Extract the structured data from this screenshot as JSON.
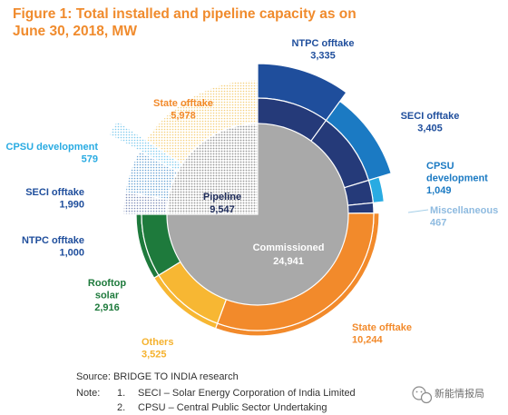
{
  "chart_data": {
    "type": "pie",
    "title_line1": "Figure 1: Total installed and pipeline capacity as on",
    "title_line2": "June 30, 2018, MW",
    "unit": "MW",
    "inner_ring": {
      "commissioned": {
        "label": "Commissioned",
        "value": "24,941",
        "amount": 24941
      },
      "pipeline": {
        "label": "Pipeline",
        "value": "9,547",
        "amount": 9547
      }
    },
    "commissioned_breakdown": [
      {
        "label": [
          "NTPC offtake"
        ],
        "value": "3,335",
        "amount": 3335,
        "color": "#1f4e9c"
      },
      {
        "label": [
          "SECI offtake"
        ],
        "value": "3,405",
        "amount": 3405,
        "color": "#1b7ac3"
      },
      {
        "label": [
          "CPSU",
          "development"
        ],
        "value": "1,049",
        "amount": 1049,
        "color": "#29abe2"
      },
      {
        "label": [
          "Miscellaneous"
        ],
        "value": "467",
        "amount": 467,
        "color": "#a5cfe8"
      },
      {
        "label": [
          "State offtake"
        ],
        "value": "10,244",
        "amount": 10244,
        "color": "#f28a2b"
      },
      {
        "label": [
          "Others"
        ],
        "value": "3,525",
        "amount": 3525,
        "color": "#f7b733"
      },
      {
        "label": [
          "Rooftop",
          "solar"
        ],
        "value": "2,916",
        "amount": 2916,
        "color": "#1e7a3c"
      }
    ],
    "pipeline_breakdown": [
      {
        "label": [
          "NTPC offtake"
        ],
        "value": "1,000",
        "amount": 1000,
        "color": "#1f4e9c"
      },
      {
        "label": [
          "SECI offtake"
        ],
        "value": "1,990",
        "amount": 1990,
        "color": "#1b7ac3"
      },
      {
        "label": [
          "CPSU development"
        ],
        "value": "579",
        "amount": 579,
        "color": "#29abe2"
      },
      {
        "label": [
          "State offtake"
        ],
        "value": "5,978",
        "amount": 5978,
        "color": "#f7b733"
      }
    ],
    "colors": {
      "commissioned_center": "#a9a9a9",
      "commissioned_ring_dark": "#253a79",
      "pipeline_ring": "#e0e0e0",
      "title": "#f08b2d"
    }
  },
  "footer": {
    "source": "Source: BRIDGE TO INDIA research",
    "note_label": "Note:",
    "notes": [
      {
        "num": "1.",
        "text": "SECI – Solar Energy Corporation of India Limited"
      },
      {
        "num": "2.",
        "text": "CPSU – Central Public Sector Undertaking"
      }
    ]
  },
  "watermark": {
    "text": "新能情报局",
    "icon": "wechat-icon"
  }
}
